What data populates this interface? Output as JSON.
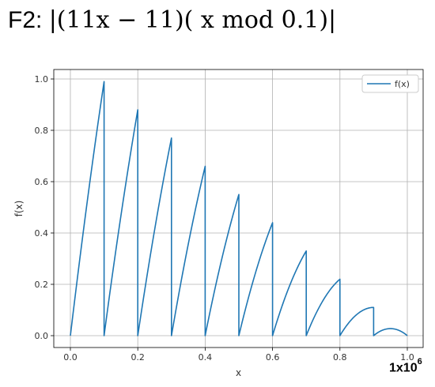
{
  "figure": {
    "title_prefix": "F2: ",
    "title_expr": "|(11x − 11)( x mod 0.1)|",
    "scale_base": "1x10",
    "scale_exp": "6"
  },
  "chart_data": {
    "type": "line",
    "xlabel": "x",
    "ylabel": "f(x)",
    "xlim": [
      0,
      1.0
    ],
    "ylim": [
      0,
      1.0
    ],
    "xticks": [
      "0.0",
      "0.2",
      "0.4",
      "0.6",
      "0.8",
      "1.0"
    ],
    "yticks": [
      "0.0",
      "0.2",
      "0.4",
      "0.6",
      "0.8",
      "1.0"
    ],
    "grid": true,
    "legend_position": "top-right",
    "series": [
      {
        "name": "f(x)",
        "color": "#1f77b4",
        "function": "|(11x - 11)(x mod 0.1)|",
        "segment_peaks": [
          0.98,
          0.875,
          0.765,
          0.655,
          0.545,
          0.435,
          0.325,
          0.215,
          0.11,
          0.025
        ]
      }
    ]
  }
}
